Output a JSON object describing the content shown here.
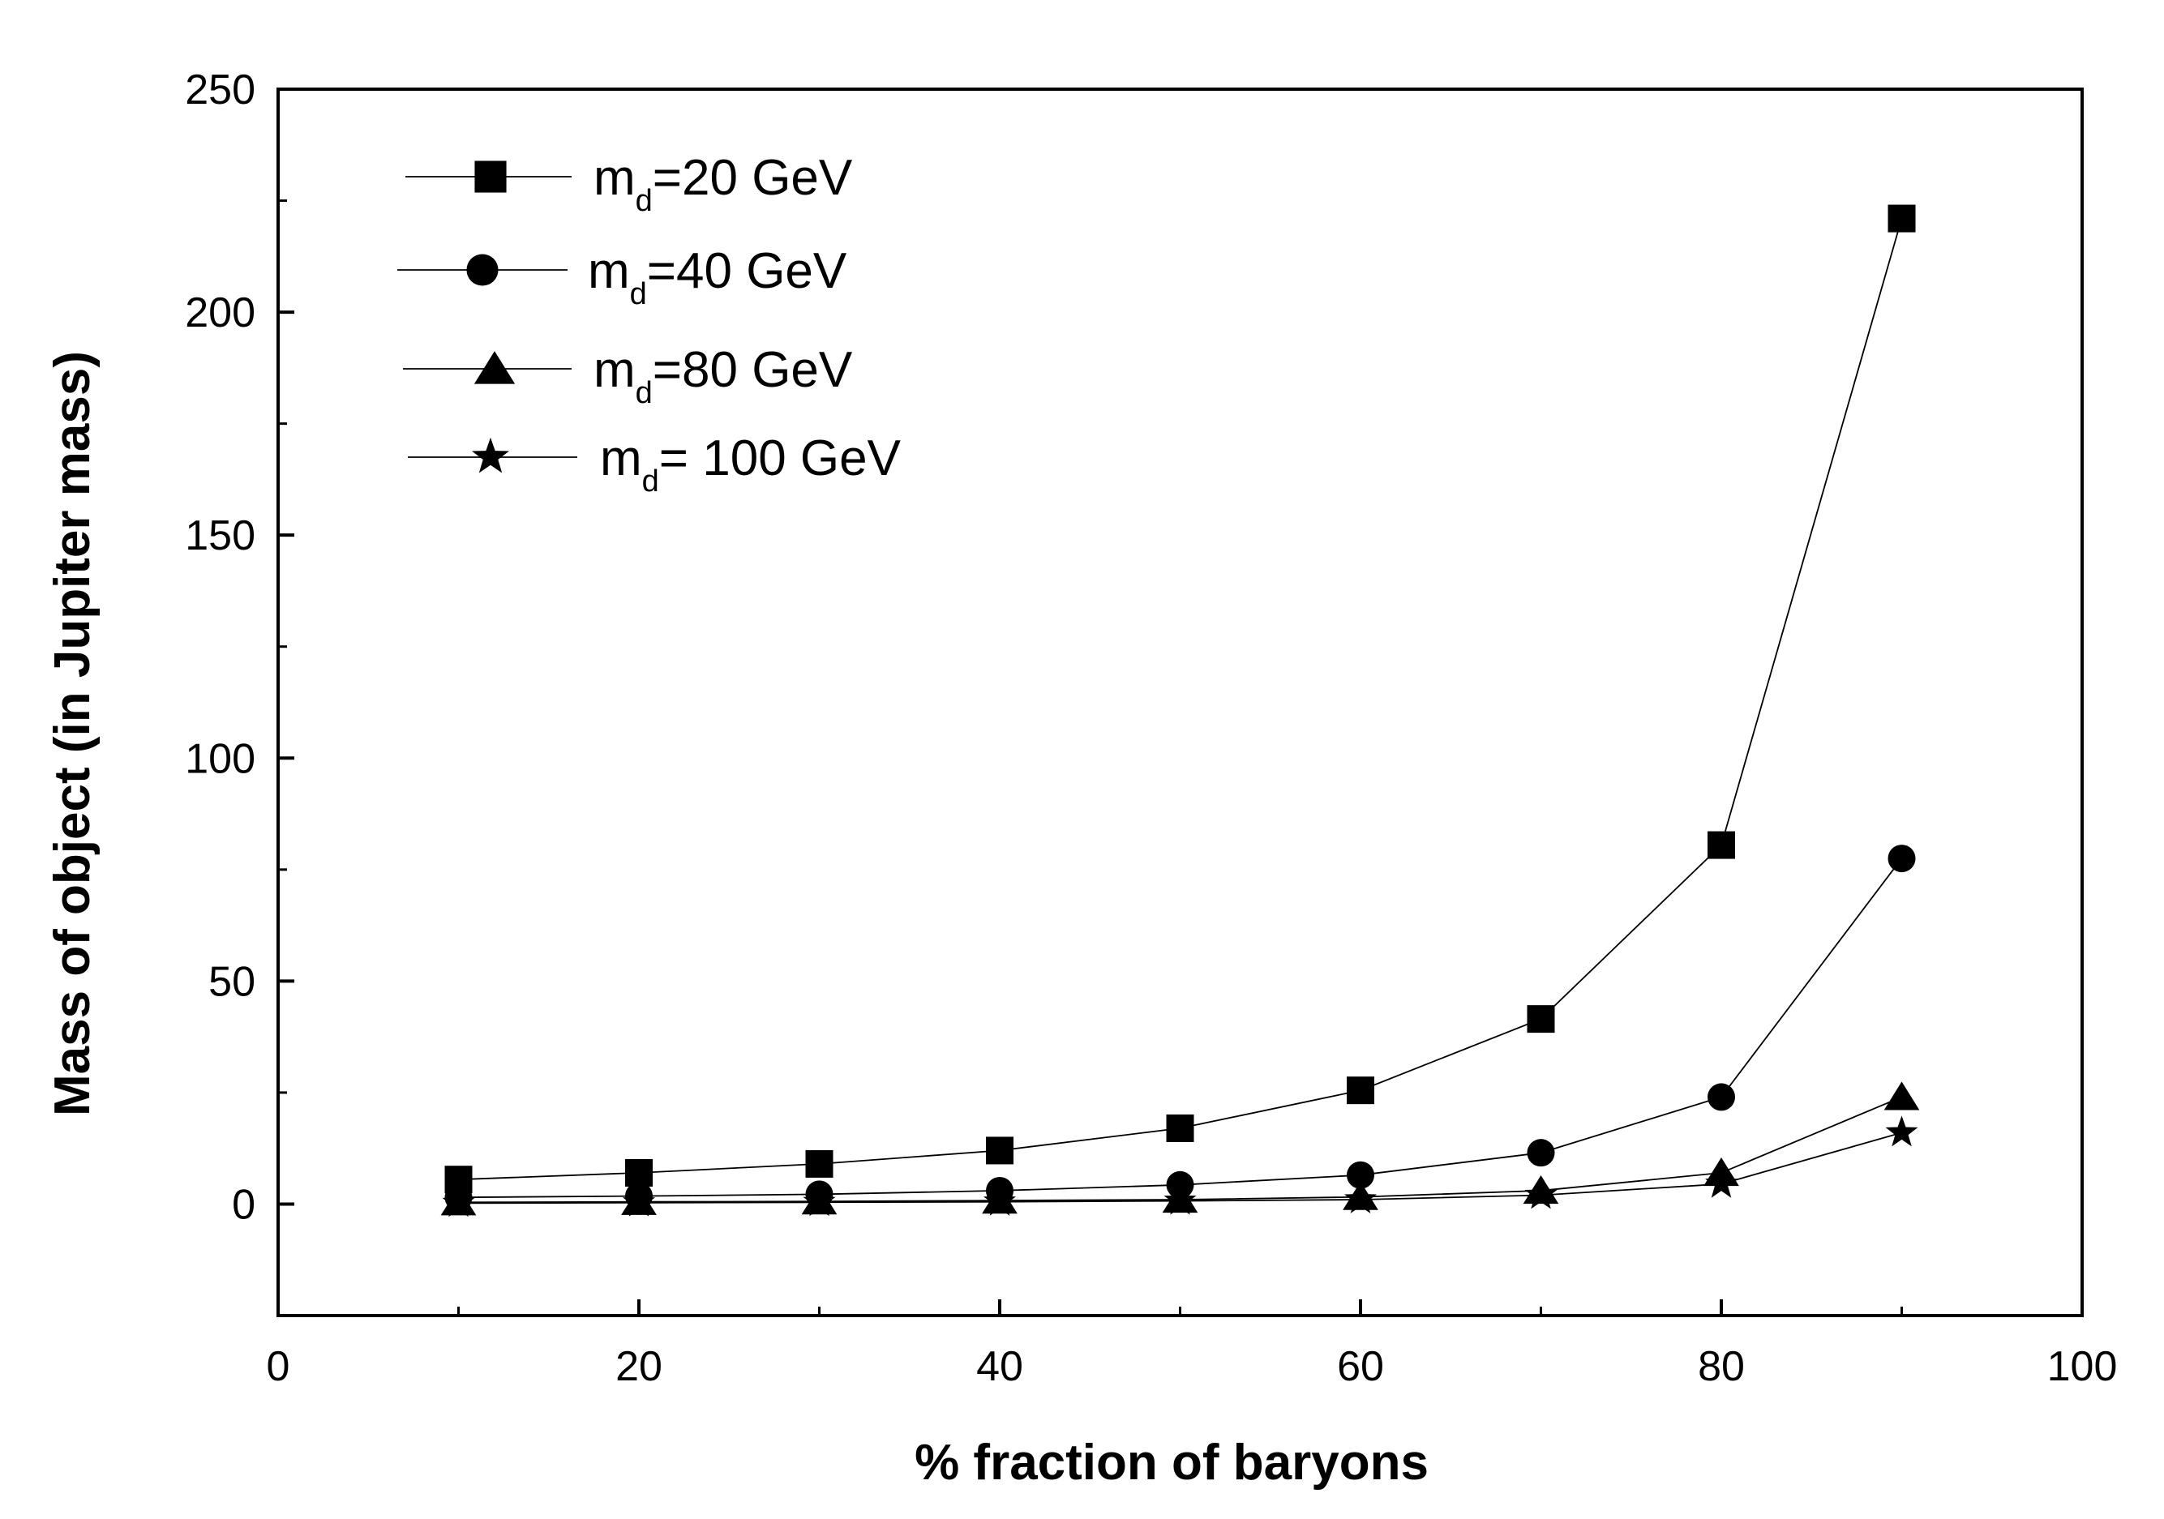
{
  "chart_data": {
    "type": "line",
    "xlabel": "% fraction of baryons",
    "ylabel": "Mass of object (in Jupiter mass)",
    "xlim": [
      0,
      100
    ],
    "ylim": [
      -25,
      250
    ],
    "x_ticks": [
      "0",
      "20",
      "40",
      "60",
      "80",
      "100"
    ],
    "y_ticks": [
      "0",
      "50",
      "100",
      "150",
      "200",
      "250"
    ],
    "x": [
      10,
      20,
      30,
      40,
      50,
      60,
      70,
      80,
      90
    ],
    "grid": false,
    "legend_position": "top-left",
    "series": [
      {
        "name": "m_d=20 GeV",
        "label_main": "m",
        "label_sub": "d",
        "label_rest": "=20 GeV",
        "marker": "square",
        "values": [
          5.5,
          7,
          9,
          12,
          17,
          25.5,
          41.5,
          80.5,
          221
        ]
      },
      {
        "name": "m_d=40 GeV",
        "label_main": "m",
        "label_sub": "d",
        "label_rest": "=40 GeV",
        "marker": "circle",
        "values": [
          1.5,
          1.8,
          2.2,
          3,
          4.3,
          6.5,
          11.5,
          24,
          77.5
        ]
      },
      {
        "name": "m_d=80 GeV",
        "label_main": "m",
        "label_sub": "d",
        "label_rest": "=80 GeV",
        "marker": "triangle",
        "values": [
          0.4,
          0.5,
          0.6,
          0.8,
          1,
          1.6,
          3,
          7,
          24
        ]
      },
      {
        "name": "m_d= 100 GeV",
        "label_main": "m",
        "label_sub": "d",
        "label_rest": "= 100 GeV",
        "marker": "star",
        "values": [
          0.2,
          0.3,
          0.4,
          0.5,
          0.7,
          1,
          2,
          4.5,
          16
        ]
      }
    ]
  }
}
